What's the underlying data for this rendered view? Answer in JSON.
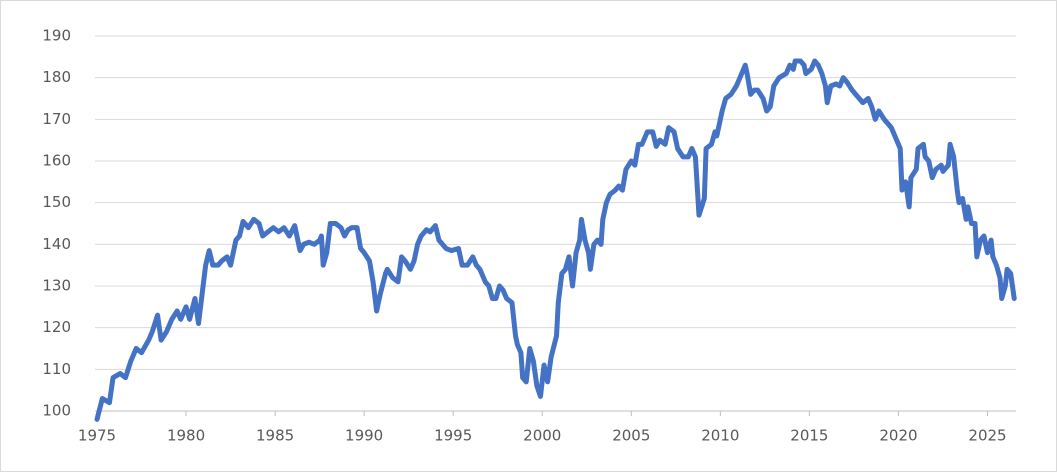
{
  "chart_data": {
    "type": "line",
    "x": [
      1975.0,
      1975.3,
      1975.7,
      1975.9,
      1976.3,
      1976.6,
      1976.9,
      1977.2,
      1977.5,
      1977.9,
      1978.1,
      1978.4,
      1978.6,
      1978.9,
      1979.2,
      1979.5,
      1979.7,
      1980.0,
      1980.2,
      1980.5,
      1980.7,
      1980.9,
      1981.1,
      1981.3,
      1981.5,
      1981.8,
      1982.0,
      1982.3,
      1982.5,
      1982.8,
      1983.0,
      1983.2,
      1983.5,
      1983.8,
      1984.1,
      1984.3,
      1984.6,
      1984.9,
      1985.2,
      1985.5,
      1985.8,
      1986.1,
      1986.4,
      1986.6,
      1986.9,
      1987.2,
      1987.5,
      1987.6,
      1987.7,
      1987.9,
      1988.1,
      1988.4,
      1988.7,
      1988.9,
      1989.1,
      1989.3,
      1989.6,
      1989.8,
      1990.0,
      1990.3,
      1990.5,
      1990.7,
      1990.9,
      1991.2,
      1991.3,
      1991.6,
      1991.9,
      1992.1,
      1992.3,
      1992.6,
      1992.8,
      1993.0,
      1993.2,
      1993.5,
      1993.7,
      1994.0,
      1994.2,
      1994.6,
      1994.9,
      1995.3,
      1995.5,
      1995.8,
      1996.1,
      1996.3,
      1996.5,
      1996.8,
      1997.0,
      1997.2,
      1997.4,
      1997.6,
      1997.8,
      1998.0,
      1998.3,
      1998.5,
      1998.6,
      1998.8,
      1998.9,
      1999.1,
      1999.3,
      1999.5,
      1999.7,
      1999.9,
      2000.1,
      2000.3,
      2000.5,
      2000.8,
      2000.9,
      2001.1,
      2001.3,
      2001.5,
      2001.7,
      2001.9,
      2002.1,
      2002.2,
      2002.4,
      2002.6,
      2002.7,
      2002.9,
      2003.1,
      2003.3,
      2003.4,
      2003.6,
      2003.8,
      2004.1,
      2004.3,
      2004.5,
      2004.7,
      2005.0,
      2005.2,
      2005.4,
      2005.6,
      2005.9,
      2006.2,
      2006.4,
      2006.6,
      2006.9,
      2007.1,
      2007.4,
      2007.6,
      2007.9,
      2008.2,
      2008.4,
      2008.6,
      2008.8,
      2009.1,
      2009.2,
      2009.5,
      2009.7,
      2009.8,
      2010.1,
      2010.3,
      2010.6,
      2010.9,
      2011.1,
      2011.4,
      2011.5,
      2011.7,
      2011.9,
      2012.1,
      2012.4,
      2012.6,
      2012.8,
      2013.0,
      2013.3,
      2013.5,
      2013.7,
      2013.9,
      2014.1,
      2014.2,
      2014.5,
      2014.7,
      2014.8,
      2015.1,
      2015.3,
      2015.5,
      2015.7,
      2015.9,
      2016.0,
      2016.2,
      2016.5,
      2016.7,
      2016.9,
      2017.1,
      2017.4,
      2017.6,
      2017.8,
      2018.0,
      2018.3,
      2018.5,
      2018.7,
      2018.9,
      2019.2,
      2019.4,
      2019.6,
      2019.9,
      2020.1,
      2020.2,
      2020.4,
      2020.6,
      2020.7,
      2021.0,
      2021.1,
      2021.4,
      2021.5,
      2021.7,
      2021.9,
      2022.1,
      2022.4,
      2022.5,
      2022.8,
      2022.9,
      2023.1,
      2023.3,
      2023.4,
      2023.6,
      2023.8,
      2023.9,
      2024.1,
      2024.3,
      2024.4,
      2024.6,
      2024.8,
      2025.0,
      2025.2,
      2025.3,
      2025.5,
      2025.7,
      2025.8,
      2026.0,
      2026.1,
      2026.3,
      2026.5
    ],
    "values": [
      98,
      103,
      102,
      108,
      109,
      108,
      112,
      115,
      114,
      117,
      119,
      123,
      117,
      119,
      122,
      124,
      122,
      125,
      122,
      127,
      121,
      128,
      135,
      138.5,
      135,
      135,
      136,
      137,
      135,
      141,
      142,
      145.5,
      144,
      146,
      145,
      142,
      143,
      144,
      143,
      144,
      142,
      144.5,
      138.5,
      140,
      140.5,
      140,
      141,
      142,
      135,
      138,
      145,
      145,
      144,
      142,
      143.5,
      144,
      144,
      139,
      138,
      136,
      131,
      124,
      128,
      133,
      134,
      132,
      131,
      137,
      136,
      134,
      136,
      140,
      142,
      143.5,
      143,
      144.5,
      141,
      139,
      138.5,
      139,
      135,
      135,
      137,
      135,
      134,
      131,
      130,
      127,
      127,
      130,
      129,
      127,
      126,
      118,
      116,
      114,
      108,
      107,
      115,
      112,
      106,
      103.5,
      111,
      107,
      113,
      118,
      126,
      133,
      134,
      137,
      130,
      138,
      141,
      146,
      141,
      138,
      134,
      140,
      141,
      140,
      146,
      150,
      152,
      153,
      154,
      153,
      158,
      160,
      159,
      164,
      164,
      167,
      167,
      163.5,
      165,
      164,
      168,
      167,
      163,
      161,
      161,
      163,
      161,
      147,
      151,
      163,
      164,
      167,
      166,
      172,
      175,
      176,
      178,
      180,
      183,
      181,
      176,
      177,
      177,
      175,
      172,
      173,
      178,
      180,
      180.5,
      181,
      183,
      182,
      184,
      184,
      183,
      181,
      182,
      184,
      183,
      181,
      178,
      174,
      178,
      178.5,
      178,
      180,
      179,
      177,
      176,
      175,
      174,
      175,
      173,
      170,
      172,
      170,
      169,
      168,
      165,
      163,
      153,
      155,
      149,
      156,
      158,
      163,
      164,
      161,
      160,
      156,
      158,
      159,
      157.5,
      159,
      164,
      161,
      153,
      150,
      151,
      146,
      149,
      145,
      145,
      137,
      141,
      142,
      138,
      141,
      137,
      135,
      132,
      127,
      130,
      134,
      133,
      127
    ],
    "color": "#4472c4",
    "xlim": [
      1975,
      2026.6
    ],
    "xticks": [
      1975,
      1980,
      1985,
      1990,
      1995,
      2000,
      2005,
      2010,
      2015,
      2020,
      2025
    ],
    "ylim": [
      100,
      190
    ],
    "yticks": [
      100,
      110,
      120,
      130,
      140,
      150,
      160,
      170,
      180,
      190
    ],
    "grid": true
  }
}
